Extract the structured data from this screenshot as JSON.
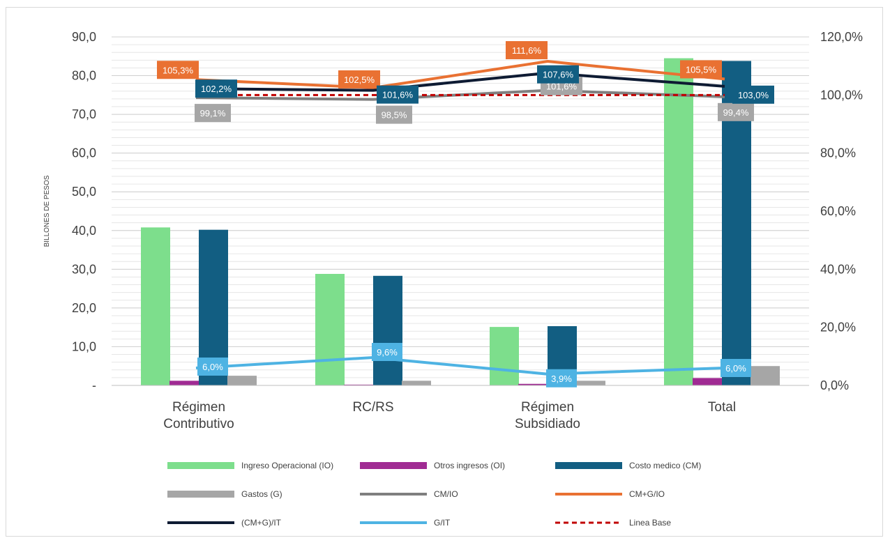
{
  "chart_data": {
    "type": "bar",
    "ylabel": "BILLONES DE PESOS",
    "categories": [
      [
        "Régimen",
        "Contributivo"
      ],
      [
        "RC/RS"
      ],
      [
        "Régimen",
        "Subsidiado"
      ],
      [
        "Total"
      ]
    ],
    "y_left": {
      "min": 0,
      "max": 90,
      "step": 10,
      "tick_labels": [
        "-",
        "10,0",
        "20,0",
        "30,0",
        "40,0",
        "50,0",
        "60,0",
        "70,0",
        "80,0",
        "90,0"
      ]
    },
    "y_right": {
      "min": 0,
      "max": 120,
      "step": 20,
      "tick_labels": [
        "0,0%",
        "20,0%",
        "40,0%",
        "60,0%",
        "80,0%",
        "100,0%",
        "120,0%"
      ]
    },
    "grid": true,
    "legend_position": "bottom",
    "bar_series": [
      {
        "name": "Ingreso Operacional (IO)",
        "color": "#7dde8c",
        "values": [
          40.8,
          28.8,
          15.1,
          84.5
        ]
      },
      {
        "name": "Otros ingresos (OI)",
        "color": "#a02b93",
        "values": [
          1.2,
          0.2,
          0.4,
          1.9
        ]
      },
      {
        "name": "Costo medico (CM)",
        "color": "#125e82",
        "values": [
          40.2,
          28.3,
          15.3,
          83.8
        ]
      },
      {
        "name": "Gastos (G)",
        "color": "#a6a6a6",
        "values": [
          2.5,
          1.2,
          1.2,
          5.0
        ]
      }
    ],
    "line_series": [
      {
        "name": "CM/IO",
        "color": "#7f7f7f",
        "values": [
          99.1,
          98.5,
          101.6,
          99.4
        ],
        "labels": [
          "99,1%",
          "98,5%",
          "101,6%",
          "99,4%"
        ],
        "label_bg": "#a6a6a6"
      },
      {
        "name": "CM+G/IO",
        "color": "#e97132",
        "values": [
          105.3,
          102.5,
          111.6,
          105.5
        ],
        "labels": [
          "105,3%",
          "102,5%",
          "111,6%",
          "105,5%"
        ],
        "label_bg": "#e97132"
      },
      {
        "name": "(CM+G)/IT",
        "color": "#0e1b33",
        "values": [
          102.2,
          101.6,
          107.6,
          103.0
        ],
        "labels": [
          "102,2%",
          "101,6%",
          "107,6%",
          "103,0%"
        ],
        "label_bg": "#125e82"
      },
      {
        "name": "G/IT",
        "color": "#4eb3e3",
        "values": [
          6.0,
          9.6,
          3.9,
          6.0
        ],
        "labels": [
          "6,0%",
          "9,6%",
          "3,9%",
          "6,0%"
        ],
        "label_bg": "#4eb3e3"
      },
      {
        "name": "Linea Base",
        "color": "#c00000",
        "dashed": true,
        "values": [
          100,
          100,
          100,
          100
        ]
      }
    ],
    "legend": [
      "Ingreso Operacional (IO)",
      "Otros ingresos (OI)",
      "Costo medico (CM)",
      "Gastos (G)",
      "CM/IO",
      "CM+G/IO",
      "(CM+G)/IT",
      "G/IT",
      "Linea Base"
    ]
  }
}
